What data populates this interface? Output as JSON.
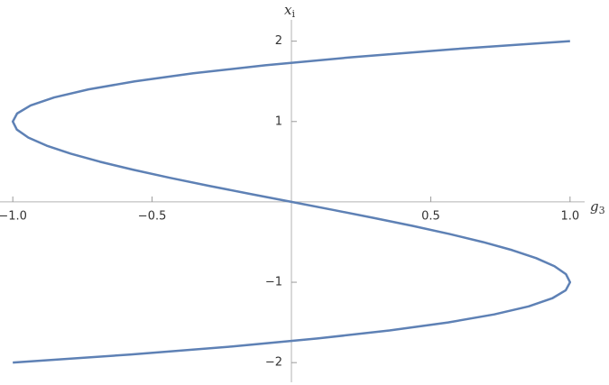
{
  "chart_data": {
    "type": "line",
    "x_label": {
      "base": "g",
      "sub": "3"
    },
    "y_label": {
      "base": "x",
      "sub": "i"
    },
    "x": [
      -1,
      -0.5795,
      -0.216,
      0.0935,
      0.352,
      0.5625,
      0.728,
      0.8515,
      0.936,
      0.9845,
      1,
      0.9855,
      0.944,
      0.8785,
      0.792,
      0.6875,
      0.568,
      0.4365,
      0.296,
      0.1495,
      0,
      -0.1495,
      -0.296,
      -0.4365,
      -0.568,
      -0.6875,
      -0.792,
      -0.8785,
      -0.944,
      -0.9855,
      -1,
      -0.9845,
      -0.936,
      -0.8515,
      -0.728,
      -0.5625,
      -0.352,
      -0.0935,
      0.216,
      0.5795,
      1
    ],
    "series": [
      {
        "color": "#5e81b5",
        "values": [
          -2,
          -1.9,
          -1.8,
          -1.7,
          -1.6,
          -1.5,
          -1.4,
          -1.3,
          -1.2,
          -1.1,
          -1,
          -0.9,
          -0.8,
          -0.7,
          -0.6,
          -0.5,
          -0.4,
          -0.3,
          -0.2,
          -0.1,
          0,
          0.1,
          0.2,
          0.3,
          0.4,
          0.5,
          0.6,
          0.7,
          0.8,
          0.9,
          1,
          1.1,
          1.2,
          1.3,
          1.4,
          1.5,
          1.6,
          1.7,
          1.8,
          1.9,
          2
        ]
      }
    ],
    "xlim": [
      -1.02,
      1.02
    ],
    "ylim": [
      -2.2,
      2.4
    ],
    "xticks": [
      {
        "value": -1,
        "label": "−1.0"
      },
      {
        "value": -0.5,
        "label": "−0.5"
      },
      {
        "value": 0.5,
        "label": "0.5"
      },
      {
        "value": 1,
        "label": "1.0"
      }
    ],
    "yticks": [
      {
        "value": -2,
        "label": "−2"
      },
      {
        "value": -1,
        "label": "−1"
      },
      1,
      2
    ]
  }
}
